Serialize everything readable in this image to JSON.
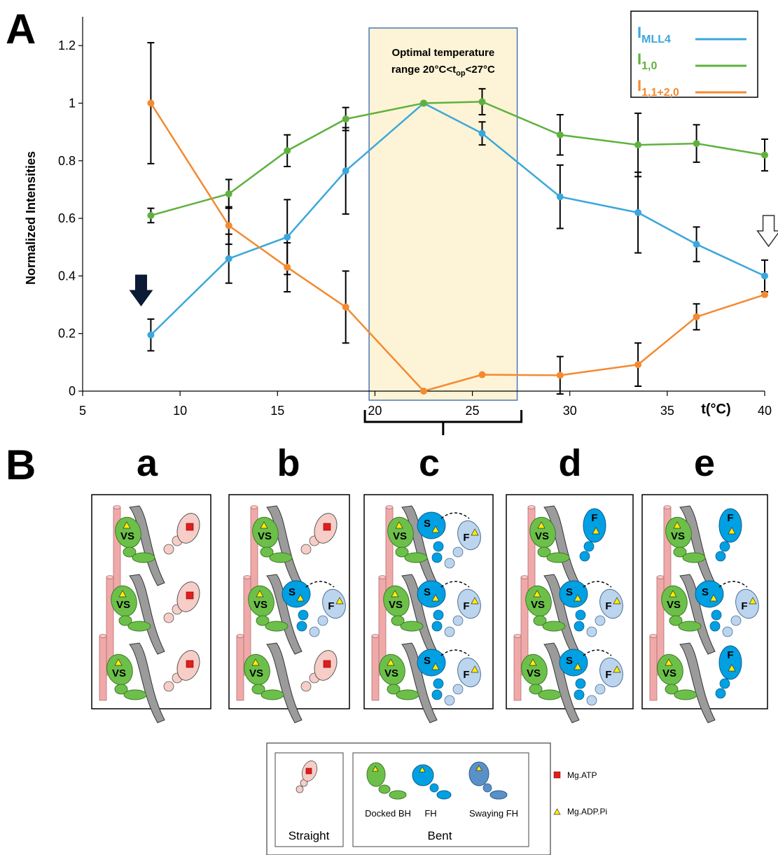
{
  "panel_a_label": "A",
  "panel_b_label": "B",
  "chart_data": {
    "type": "line",
    "xlabel": "t(°C)",
    "ylabel": "Normalized Intensities",
    "xlim": [
      5,
      40
    ],
    "ylim": [
      0,
      1.3
    ],
    "xticks": [
      "5",
      "10",
      "15",
      "20",
      "25",
      "30",
      "35",
      "40"
    ],
    "yticks": [
      "0",
      "0.2",
      "0.4",
      "0.6",
      "0.8",
      "1",
      "1.2"
    ],
    "grid": false,
    "legend_position": "top-right",
    "x": [
      8.5,
      12.5,
      15.5,
      18.5,
      22.5,
      25.5,
      29.5,
      33.5,
      36.5,
      40
    ],
    "series": [
      {
        "name": "I",
        "name_sub": "MLL4",
        "color": "#3ba7db",
        "values": [
          0.195,
          0.46,
          0.535,
          0.765,
          1.0,
          0.895,
          0.675,
          0.62,
          0.51,
          0.4
        ],
        "errors": [
          0.055,
          0.085,
          0.13,
          0.15,
          0,
          0.04,
          0.11,
          0.14,
          0.06,
          0.055
        ]
      },
      {
        "name": "I",
        "name_sub": "1,0",
        "color": "#5fb13f",
        "values": [
          0.61,
          0.685,
          0.835,
          0.945,
          1.0,
          1.005,
          0.89,
          0.855,
          0.86,
          0.82
        ],
        "errors": [
          0.025,
          0.05,
          0.055,
          0.04,
          0,
          0.045,
          0.07,
          0.11,
          0.065,
          0.055
        ]
      },
      {
        "name": "I",
        "name_sub": "1,1+2,0",
        "color": "#f38a31",
        "values": [
          1.0,
          0.575,
          0.43,
          0.292,
          0.0,
          0.057,
          0.055,
          0.092,
          0.258,
          0.335
        ],
        "errors": [
          0.21,
          0.065,
          0.085,
          0.125,
          0,
          0,
          0.065,
          0.075,
          0.045,
          0
        ]
      }
    ],
    "annotations": {
      "box_line1": "Optimal temperature",
      "box_line2_a": "range 20°C<t",
      "box_line2_sub": "op",
      "box_line2_b": "<27°C",
      "box_xrange": [
        19.7,
        27.3
      ],
      "bracket_label": "c",
      "filled_arrow_x": 8.5,
      "hollow_arrow_x": 40
    }
  },
  "schematic": {
    "columns": [
      {
        "letter": "a",
        "rows": [
          "straight",
          "straight",
          "straight"
        ]
      },
      {
        "letter": "b",
        "rows": [
          "straight",
          "swaying",
          "straight"
        ]
      },
      {
        "letter": "c",
        "rows": [
          "swaying",
          "swaying",
          "swaying"
        ]
      },
      {
        "letter": "d",
        "rows": [
          "free",
          "swaying",
          "swaying"
        ]
      },
      {
        "letter": "e",
        "rows": [
          "free",
          "swaying",
          "free"
        ]
      }
    ],
    "labels": {
      "vs": "VS",
      "s": "S",
      "f": "F"
    },
    "colors": {
      "green": "#6cc04a",
      "blue": "#00a0e3",
      "light_blue": "#bcd5ee",
      "pink": "#f6cdc7",
      "filament": "#f0a9a9",
      "grey": "#9b9b9b",
      "atp": "#e21d1d",
      "adp": "#ffee00"
    }
  },
  "legend_b": {
    "straight_label": "Straight",
    "bent_label": "Bent",
    "docked_label": "Docked BH",
    "fh_label": "FH",
    "swaying_label": "Swaying FH",
    "atp_label": "Mg.ATP",
    "adp_label": "Mg.ADP.Pi"
  }
}
